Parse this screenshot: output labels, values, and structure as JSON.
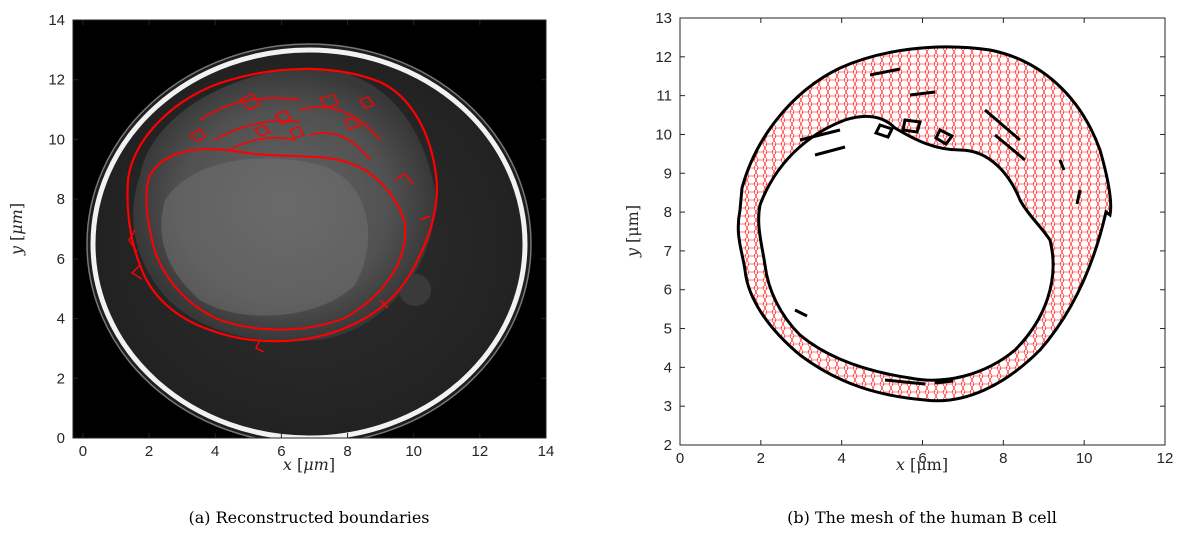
{
  "panels": [
    {
      "caption": "(a) Reconstructed boundaries",
      "xlabel": {
        "var": "x",
        "unit": "μm"
      },
      "ylabel": {
        "var": "y",
        "unit": "μm"
      },
      "xticks": [
        "0",
        "2",
        "4",
        "6",
        "8",
        "10",
        "12",
        "14"
      ],
      "yticks": [
        "0",
        "2",
        "4",
        "6",
        "8",
        "10",
        "12",
        "14"
      ]
    },
    {
      "caption": "(b) The mesh of the human B cell",
      "xlabel": {
        "var": "x",
        "unit": "μm"
      },
      "ylabel": {
        "var": "y",
        "unit": "μm"
      },
      "xticks": [
        "0",
        "2",
        "4",
        "6",
        "8",
        "10",
        "12"
      ],
      "yticks": [
        "2",
        "3",
        "4",
        "5",
        "6",
        "7",
        "8",
        "9",
        "10",
        "11",
        "12",
        "13"
      ]
    }
  ],
  "colors": {
    "boundary": "#ff0000",
    "mesh_edges": "#ff0000",
    "cell_outline": "#000000",
    "image_background": "#000000",
    "ring": "#ffffff"
  },
  "chart_data": [
    {
      "type": "image",
      "title": "",
      "xlim": [
        -0.3,
        14
      ],
      "ylim": [
        0,
        14
      ],
      "description_keys": {
        "content": "X-ray tomography slice with reconstructed red boundaries"
      }
    },
    {
      "type": "mesh",
      "title": "",
      "xlim": [
        0,
        12
      ],
      "ylim": [
        2,
        13
      ]
    }
  ]
}
